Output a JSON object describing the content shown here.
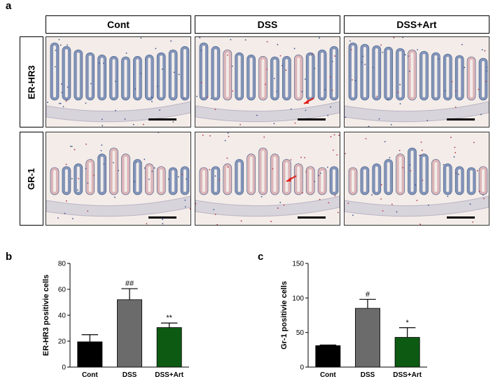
{
  "figure": {
    "panel_a": "a",
    "panel_b": "b",
    "panel_c": "c",
    "columns": [
      "Cont",
      "DSS",
      "DSS+Art"
    ],
    "rows": [
      "ER-HR3",
      "GR-1"
    ]
  },
  "colors": {
    "cont": "#000000",
    "dss": "#6b6b6b",
    "art": "#0d5a12",
    "tissue_blue": "#5d77a8",
    "tissue_pink": "#d6a3a8",
    "background_tissue": "#f3ece8",
    "arrow": "#e0201a"
  },
  "chart_data": [
    {
      "type": "bar",
      "panel": "b",
      "categories": [
        "Cont",
        "DSS",
        "DSS+Art"
      ],
      "values": [
        19.5,
        52,
        30.5
      ],
      "errors": [
        5.5,
        8.5,
        3.5
      ],
      "significance": [
        "",
        "##",
        "**"
      ],
      "title": "",
      "xlabel": "",
      "ylabel": "ER-HR3 positivie cells",
      "ylim": [
        0,
        80
      ],
      "yticks": [
        0,
        20,
        40,
        60,
        80
      ],
      "bar_colors": [
        "#000000",
        "#6b6b6b",
        "#0d5a12"
      ]
    },
    {
      "type": "bar",
      "panel": "c",
      "categories": [
        "Cont",
        "DSS",
        "DSS+Art"
      ],
      "values": [
        31,
        85,
        43
      ],
      "errors": [
        1,
        13,
        14
      ],
      "significance": [
        "",
        "#",
        "*"
      ],
      "title": "",
      "xlabel": "",
      "ylabel": "Gr-1 positivie cells",
      "ylim": [
        0,
        150
      ],
      "yticks": [
        0,
        50,
        100,
        150
      ],
      "bar_colors": [
        "#000000",
        "#6b6b6b",
        "#0d5a12"
      ]
    }
  ]
}
